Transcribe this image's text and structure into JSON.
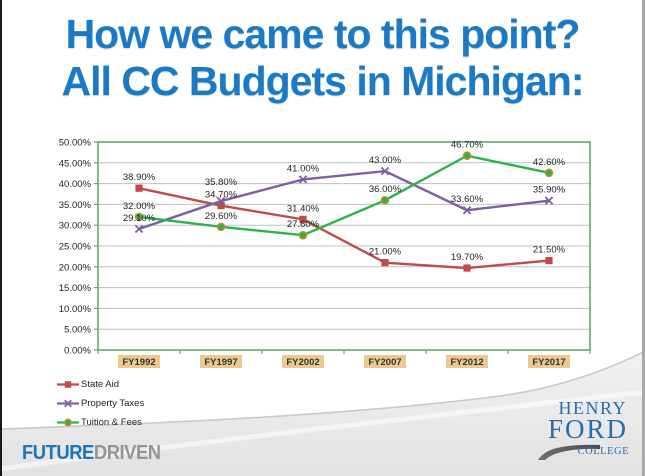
{
  "title": {
    "line1": "How we came to this point?",
    "line2": "All CC Budgets in Michigan:",
    "color": "#1B7AC6"
  },
  "chart_data": {
    "type": "line",
    "title": "",
    "xlabel": "",
    "ylabel": "",
    "categories": [
      "FY1992",
      "FY1997",
      "FY2002",
      "FY2007",
      "FY2012",
      "FY2017"
    ],
    "series": [
      {
        "name": "State Aid",
        "color": "#BE4B48",
        "marker": "square",
        "values": [
          38.9,
          34.7,
          31.4,
          21.0,
          19.7,
          21.5
        ]
      },
      {
        "name": "Property Taxes",
        "color": "#7D60A0",
        "marker": "x",
        "values": [
          29.1,
          35.8,
          41.0,
          43.0,
          33.6,
          35.9
        ]
      },
      {
        "name": "Tuition & Fees",
        "color": "#2CB34A",
        "marker": "circle",
        "marker_border": "#C98B2D",
        "values": [
          32.0,
          29.6,
          27.6,
          36.0,
          46.7,
          42.6
        ]
      }
    ],
    "ylim": [
      0,
      50
    ],
    "ytick_step": 5,
    "ytick_labels": [
      "0.00%",
      "5.00%",
      "10.00%",
      "15.00%",
      "20.00%",
      "25.00%",
      "30.00%",
      "35.00%",
      "40.00%",
      "45.00%",
      "50.00%"
    ],
    "value_format": "percent-2dp",
    "show_data_labels": true,
    "grid": true,
    "legend_position": "bottom-left",
    "colors": {
      "gridline": "#C0C0C0",
      "plot_border": "#5EA877",
      "xlabel_bg": "#EDC98F",
      "axis_text": "#222222",
      "data_label_text": "#1F1F1F"
    }
  },
  "footer": {
    "brand_part1": "FUTURE",
    "brand_part2": "DRIVEN",
    "brand_color1": "#1B75BC",
    "brand_color2": "#939598",
    "logo_word1": "HENRY",
    "logo_word2": "FORD",
    "logo_word3": "COLLEGE",
    "logo_color": "#2A6BAD"
  }
}
